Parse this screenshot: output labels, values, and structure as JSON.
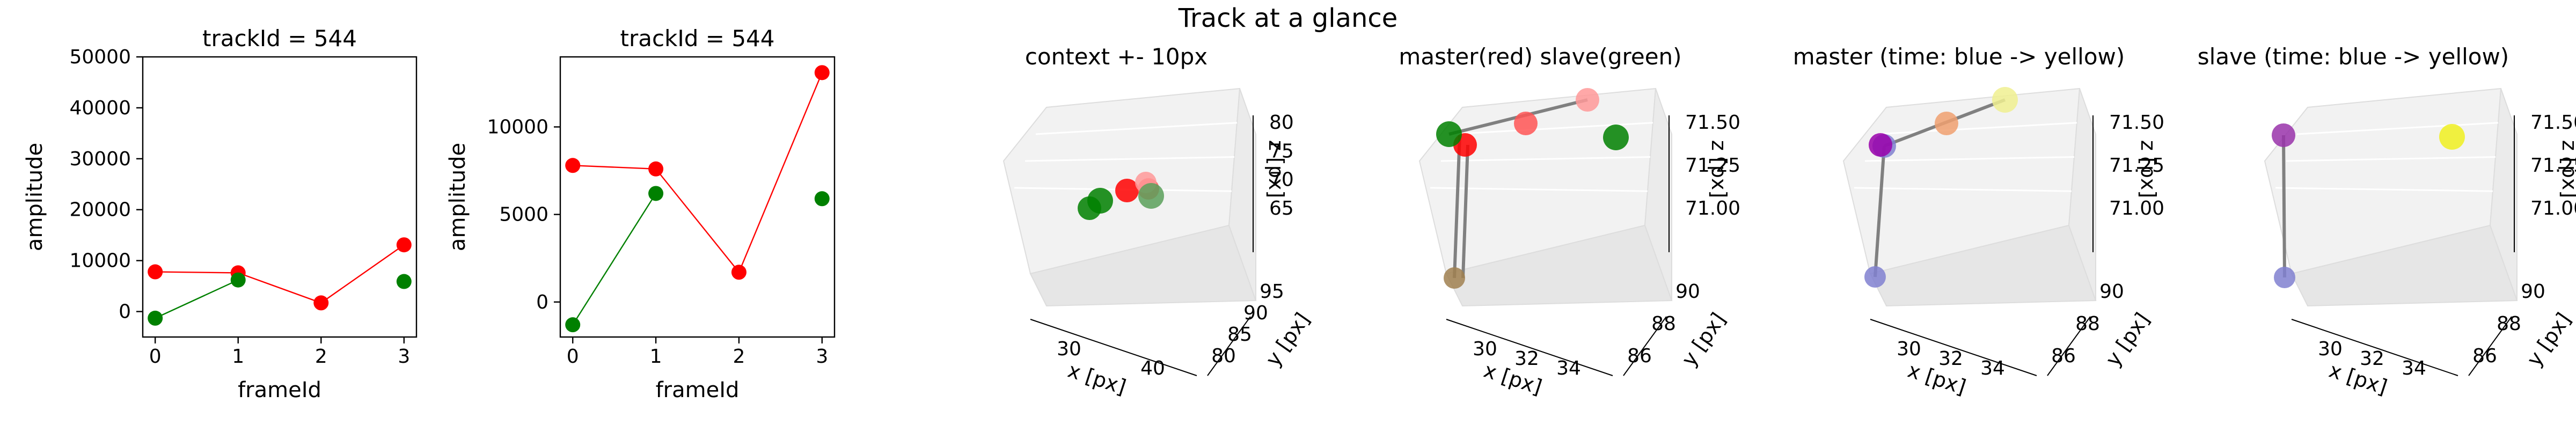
{
  "figure": {
    "suptitle": "Track at a glance"
  },
  "chart_data": [
    {
      "type": "line",
      "title": "trackId = 544",
      "xlabel": "frameId",
      "ylabel": "amplitude",
      "xlim": [
        -0.15,
        3.15
      ],
      "ylim": [
        -5000,
        50000
      ],
      "x_ticks": [
        0,
        1,
        2,
        3
      ],
      "y_ticks": [
        0,
        10000,
        20000,
        30000,
        40000,
        50000
      ],
      "series": [
        {
          "color": "#ff0000",
          "x": [
            0,
            1,
            2,
            3
          ],
          "y": [
            7800,
            7600,
            1700,
            13100
          ]
        },
        {
          "color": "#008000",
          "x": [
            0,
            1
          ],
          "y": [
            -1300,
            6200
          ]
        },
        {
          "color": "#008000",
          "x": [
            3
          ],
          "y": [
            5900
          ],
          "markers_only": true
        }
      ]
    },
    {
      "type": "line",
      "title": "trackId = 544",
      "xlabel": "frameId",
      "ylabel": "amplitude",
      "xlim": [
        -0.15,
        3.15
      ],
      "ylim": [
        -2000,
        14000
      ],
      "x_ticks": [
        0,
        1,
        2,
        3
      ],
      "y_ticks": [
        0,
        5000,
        10000
      ],
      "series": [
        {
          "color": "#ff0000",
          "x": [
            0,
            1,
            2,
            3
          ],
          "y": [
            7800,
            7600,
            1700,
            13100
          ]
        },
        {
          "color": "#008000",
          "x": [
            0,
            1
          ],
          "y": [
            -1300,
            6200
          ]
        },
        {
          "color": "#008000",
          "x": [
            3
          ],
          "y": [
            5900
          ],
          "markers_only": true
        }
      ]
    },
    {
      "type": "scatter",
      "title": "context +- 10px",
      "xlabel": "x [px]",
      "ylabel": "y [px]",
      "zlabel": "z [px]",
      "x_ticks": [
        "30",
        "40"
      ],
      "y_ticks": [
        "80",
        "85",
        "90",
        "95"
      ],
      "z_ticks": [
        "65",
        "70",
        "75",
        "80"
      ],
      "points": [
        {
          "label": "red-1",
          "color": "#ff0000"
        },
        {
          "label": "red-2",
          "color": "#ff5555"
        },
        {
          "label": "red-3",
          "color": "#ff9999"
        },
        {
          "label": "green-1",
          "color": "#008000"
        },
        {
          "label": "green-2",
          "color": "#008000"
        },
        {
          "label": "green-3",
          "color": "#5aa05a"
        }
      ]
    },
    {
      "type": "scatter",
      "title": "master(red) slave(green)",
      "xlabel": "x [px]",
      "ylabel": "y [px]",
      "zlabel": "z [px]",
      "x_ticks": [
        "30",
        "32",
        "34"
      ],
      "y_ticks": [
        "86",
        "88",
        "90"
      ],
      "z_ticks": [
        "71.00",
        "71.25",
        "71.50"
      ],
      "points": [
        {
          "label": "red-1",
          "color": "#ff0000"
        },
        {
          "label": "red-2",
          "color": "#ff5555"
        },
        {
          "label": "red-3",
          "color": "#ff9999"
        },
        {
          "label": "green-1",
          "color": "#008000"
        },
        {
          "label": "green-2",
          "color": "#008000"
        },
        {
          "label": "green-bottom",
          "color": "#a08050"
        }
      ]
    },
    {
      "type": "scatter",
      "title": "master (time: blue -> yellow)",
      "xlabel": "x [px]",
      "ylabel": "y [px]",
      "zlabel": "z [px]",
      "x_ticks": [
        "30",
        "32",
        "34"
      ],
      "y_ticks": [
        "86",
        "88",
        "90"
      ],
      "z_ticks": [
        "71.00",
        "71.25",
        "71.50"
      ],
      "points": [
        {
          "label": "t0",
          "color": "#8080d0"
        },
        {
          "label": "t1",
          "color": "#9900aa"
        },
        {
          "label": "t2",
          "color": "#f0a070"
        },
        {
          "label": "t3",
          "color": "#f0f090"
        }
      ]
    },
    {
      "type": "scatter",
      "title": "slave (time: blue -> yellow)",
      "xlabel": "x [px]",
      "ylabel": "y [px]",
      "zlabel": "z [px]",
      "x_ticks": [
        "30",
        "32",
        "34"
      ],
      "y_ticks": [
        "86",
        "88",
        "90"
      ],
      "z_ticks": [
        "71.00",
        "71.25",
        "71.50"
      ],
      "points": [
        {
          "label": "t0",
          "color": "#8080d0"
        },
        {
          "label": "t1",
          "color": "#9933aa"
        },
        {
          "label": "t3",
          "color": "#f0f020"
        }
      ]
    }
  ]
}
